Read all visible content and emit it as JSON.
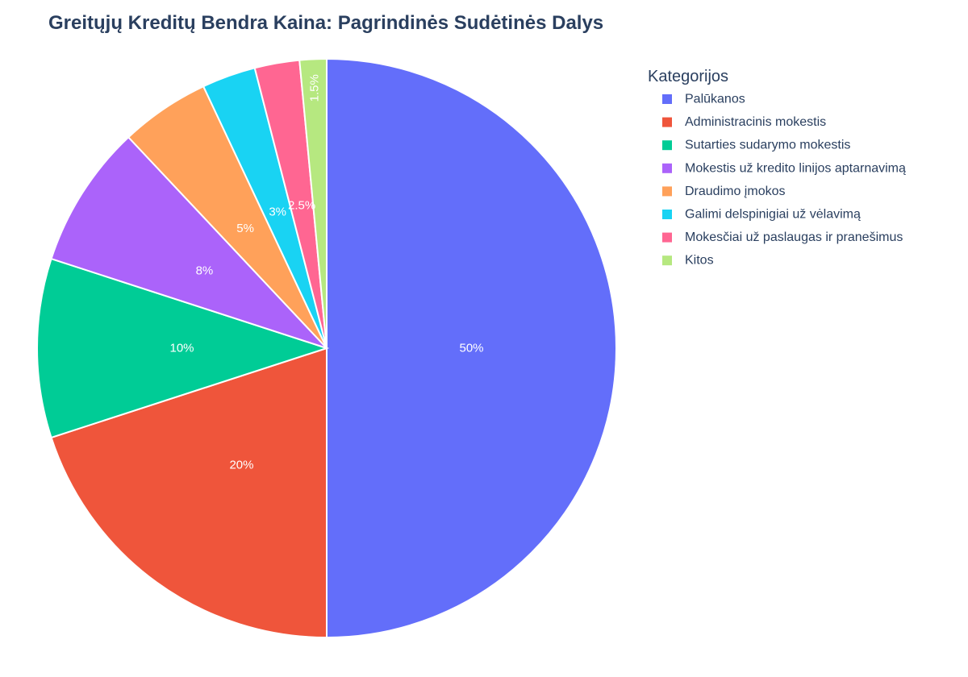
{
  "chart_data": {
    "type": "pie",
    "title": "Greitųjų Kreditų Bendra Kaina: Pagrindinės Sudėtinės Dalys",
    "legend_title": "Kategorijos",
    "legend_position": "top-right",
    "categories": [
      "Palūkanos",
      "Administracinis mokestis",
      "Sutarties sudarymo mokestis",
      "Mokestis už kredito linijos aptarnavimą",
      "Draudimo įmokos",
      "Galimi delspinigiai už vėlavimą",
      "Mokesčiai už paslaugas ir pranešimus",
      "Kitos"
    ],
    "values": [
      50,
      20,
      10,
      8,
      5,
      3,
      2.5,
      1.5
    ],
    "value_labels": [
      "50%",
      "20%",
      "10%",
      "8%",
      "5%",
      "3%",
      "2.5%",
      "1.5%"
    ],
    "colors": [
      "#636efa",
      "#ef553b",
      "#00cc96",
      "#ab63fa",
      "#ffa15a",
      "#19d3f3",
      "#ff6692",
      "#b6e880"
    ]
  }
}
